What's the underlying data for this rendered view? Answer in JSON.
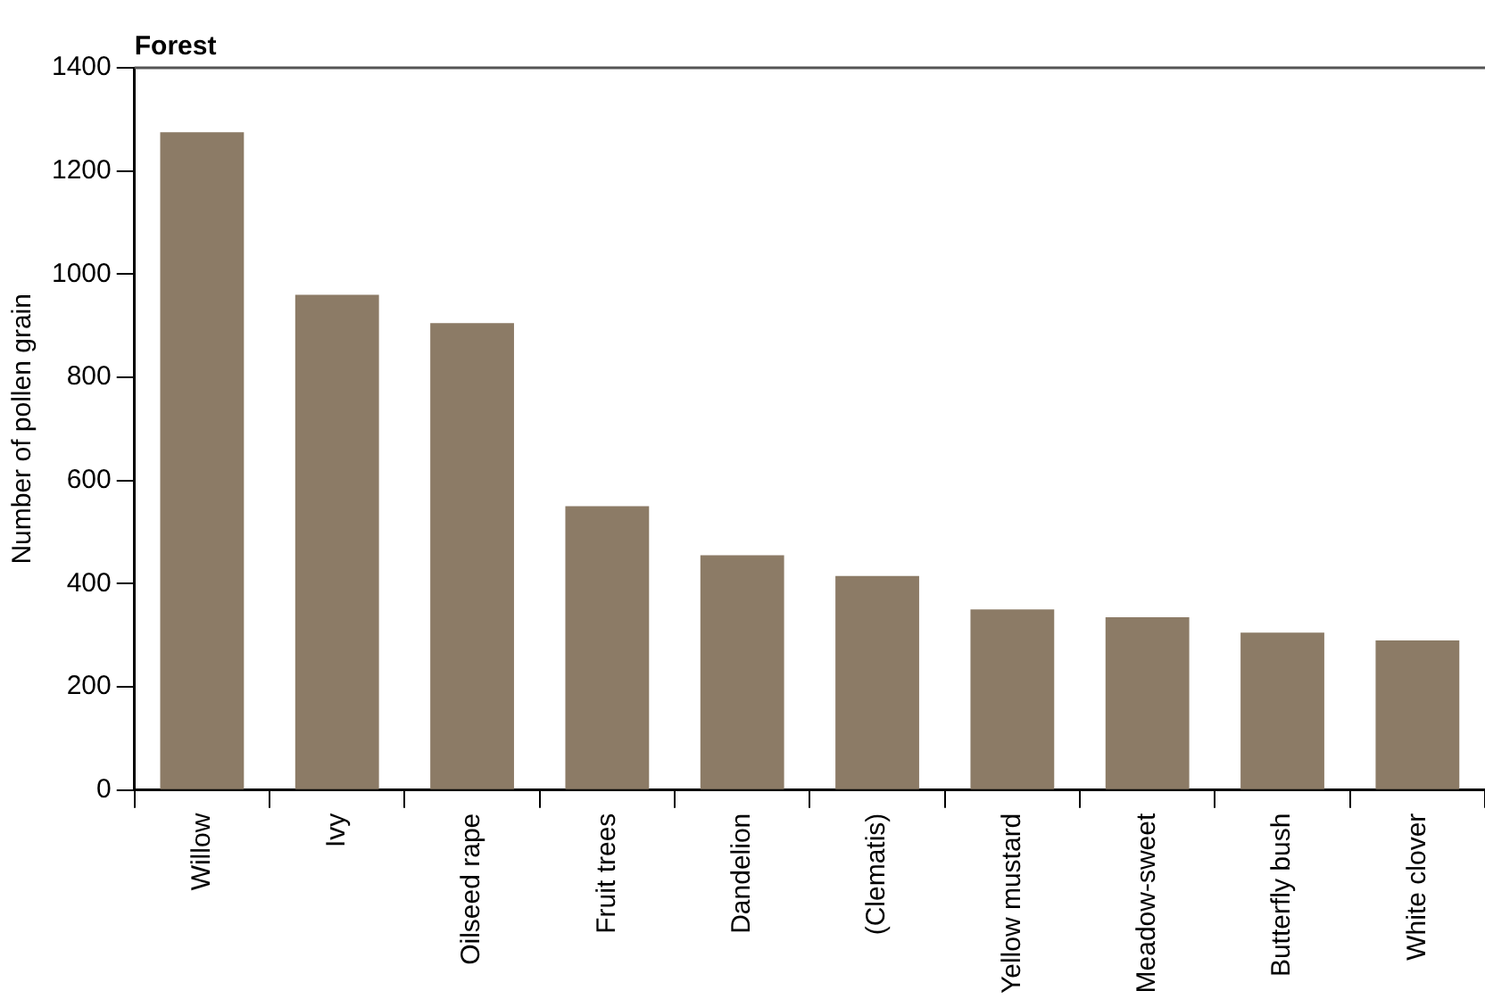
{
  "chart_data": {
    "type": "bar",
    "title": "Forest",
    "ylabel": "Number of pollen grain",
    "categories": [
      "Willow",
      "Ivy",
      "Oilseed rape",
      "Fruit trees",
      "Dandelion",
      "(Clematis)",
      "Yellow mustard",
      "Meadow-sweet",
      "Butterfly bush",
      "White clover"
    ],
    "values": [
      1275,
      960,
      905,
      550,
      455,
      415,
      350,
      335,
      305,
      290
    ],
    "color": "#8c7b66",
    "ylim": [
      0,
      1400
    ],
    "yticks": [
      0,
      200,
      400,
      600,
      800,
      1000,
      1200,
      1400
    ],
    "grid": false,
    "legend": false
  }
}
